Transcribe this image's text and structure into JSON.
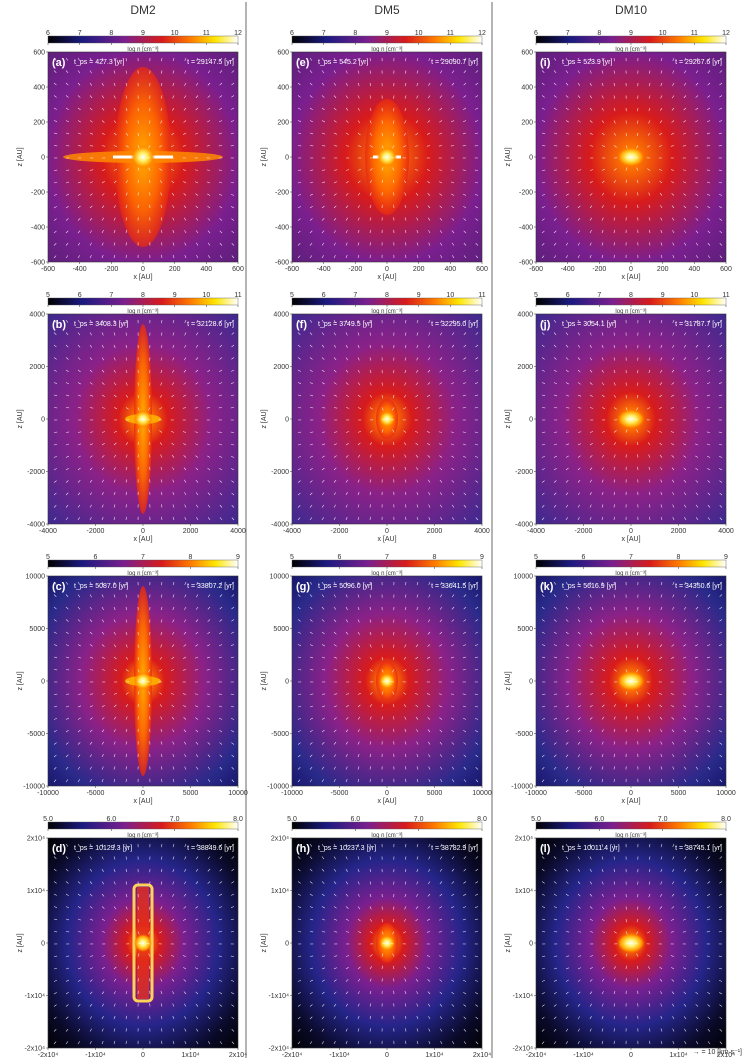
{
  "columns": [
    {
      "name": "DM2",
      "cbar_label": "log n [cm⁻³]"
    },
    {
      "name": "DM5",
      "cbar_label": "log n [cm⁻³]"
    },
    {
      "name": "DM10",
      "cbar_label": "log n [cm⁻³]"
    }
  ],
  "rows": [
    {
      "cbar_ticks": [
        "6",
        "7",
        "8",
        "9",
        "10",
        "11",
        "12"
      ],
      "axis_min": -600,
      "axis_max": 600,
      "xticks": [
        "-600",
        "-400",
        "-200",
        "0",
        "200",
        "400",
        "600"
      ],
      "yticks": [
        "600",
        "400",
        "200",
        "0",
        "-200",
        "-400",
        "-600"
      ],
      "xlabel": "x [AU]",
      "ylabel": "z [AU]",
      "panels": [
        {
          "label": "(a)",
          "tps": "t_ps = 427.3 [yr]",
          "t": "t = 29147.5 [yr]",
          "shape": "disk-lobes"
        },
        {
          "label": "(e)",
          "tps": "t_ps = 545.2 [yr]",
          "t": "t = 29090.7 [yr]",
          "shape": "oval"
        },
        {
          "label": "(i)",
          "tps": "t_ps = 523.9 [yr]",
          "t": "t = 29267.6 [yr]",
          "shape": "compact"
        }
      ]
    },
    {
      "cbar_ticks": [
        "5",
        "6",
        "7",
        "8",
        "9",
        "10",
        "11"
      ],
      "axis_min": -5000,
      "axis_max": 5000,
      "xticks": [
        "-4000",
        "-2000",
        "0",
        "2000",
        "4000"
      ],
      "yticks": [
        "4000",
        "2000",
        "0",
        "-2000",
        "-4000"
      ],
      "xlabel": "x [AU]",
      "ylabel": "z [AU]",
      "panels": [
        {
          "label": "(b)",
          "tps": "t_ps = 3408.3 [yr]",
          "t": "t = 32128.6 [yr]",
          "shape": "jet"
        },
        {
          "label": "(f)",
          "tps": "t_ps = 3749.5 [yr]",
          "t": "t = 32295.0 [yr]",
          "shape": "oval-small"
        },
        {
          "label": "(j)",
          "tps": "t_ps = 3054.1 [yr]",
          "t": "t = 31787.7 [yr]",
          "shape": "compact"
        }
      ]
    },
    {
      "cbar_ticks": [
        "5",
        "6",
        "7",
        "8",
        "9"
      ],
      "axis_min": -10000,
      "axis_max": 10000,
      "xticks": [
        "-10000",
        "-5000",
        "0",
        "5000",
        "10000"
      ],
      "yticks": [
        "10000",
        "5000",
        "0",
        "-5000",
        "-10000"
      ],
      "xlabel": "x [AU]",
      "ylabel": "z [AU]",
      "panels": [
        {
          "label": "(c)",
          "tps": "t_ps = 5087.0 [yr]",
          "t": "t = 33807.2 [yr]",
          "shape": "jet"
        },
        {
          "label": "(g)",
          "tps": "t_ps = 5096.0 [yr]",
          "t": "t = 33641.5 [yr]",
          "shape": "oval-small"
        },
        {
          "label": "(k)",
          "tps": "t_ps = 5616.9 [yr]",
          "t": "t = 34350.6 [yr]",
          "shape": "compact"
        }
      ]
    },
    {
      "cbar_ticks": [
        "5.0",
        "6.0",
        "7.0",
        "8.0"
      ],
      "axis_min": -20000,
      "axis_max": 20000,
      "xticks": [
        "-2x10⁴",
        "-1x10⁴",
        "0",
        "1x10⁴",
        "2x10⁴"
      ],
      "yticks": [
        "2x10⁴",
        "1x10⁴",
        "0",
        "-1x10⁴",
        "-2x10⁴"
      ],
      "xlabel": "x [AU]",
      "ylabel": "z [AU]",
      "panels": [
        {
          "label": "(d)",
          "tps": "t_ps = 10129.3 [yr]",
          "t": "t = 38849.6 [yr]",
          "shape": "jet-box"
        },
        {
          "label": "(h)",
          "tps": "t_ps = 10237.3 [yr]",
          "t": "t = 38782.9 [yr]",
          "shape": "oval-small"
        },
        {
          "label": "(l)",
          "tps": "t_ps = 10011.4 [yr]",
          "t": "t = 38745.1 [yr]",
          "shape": "compact"
        }
      ]
    }
  ],
  "velocity_scale": "→ = 10 [km s⁻¹]",
  "colors": {
    "c0": "#000000",
    "c1": "#1a1a80",
    "c2": "#7a1f8f",
    "c3": "#d81b1b",
    "c4": "#ff7a00",
    "c5": "#ffe600",
    "c6": "#ffffff"
  }
}
